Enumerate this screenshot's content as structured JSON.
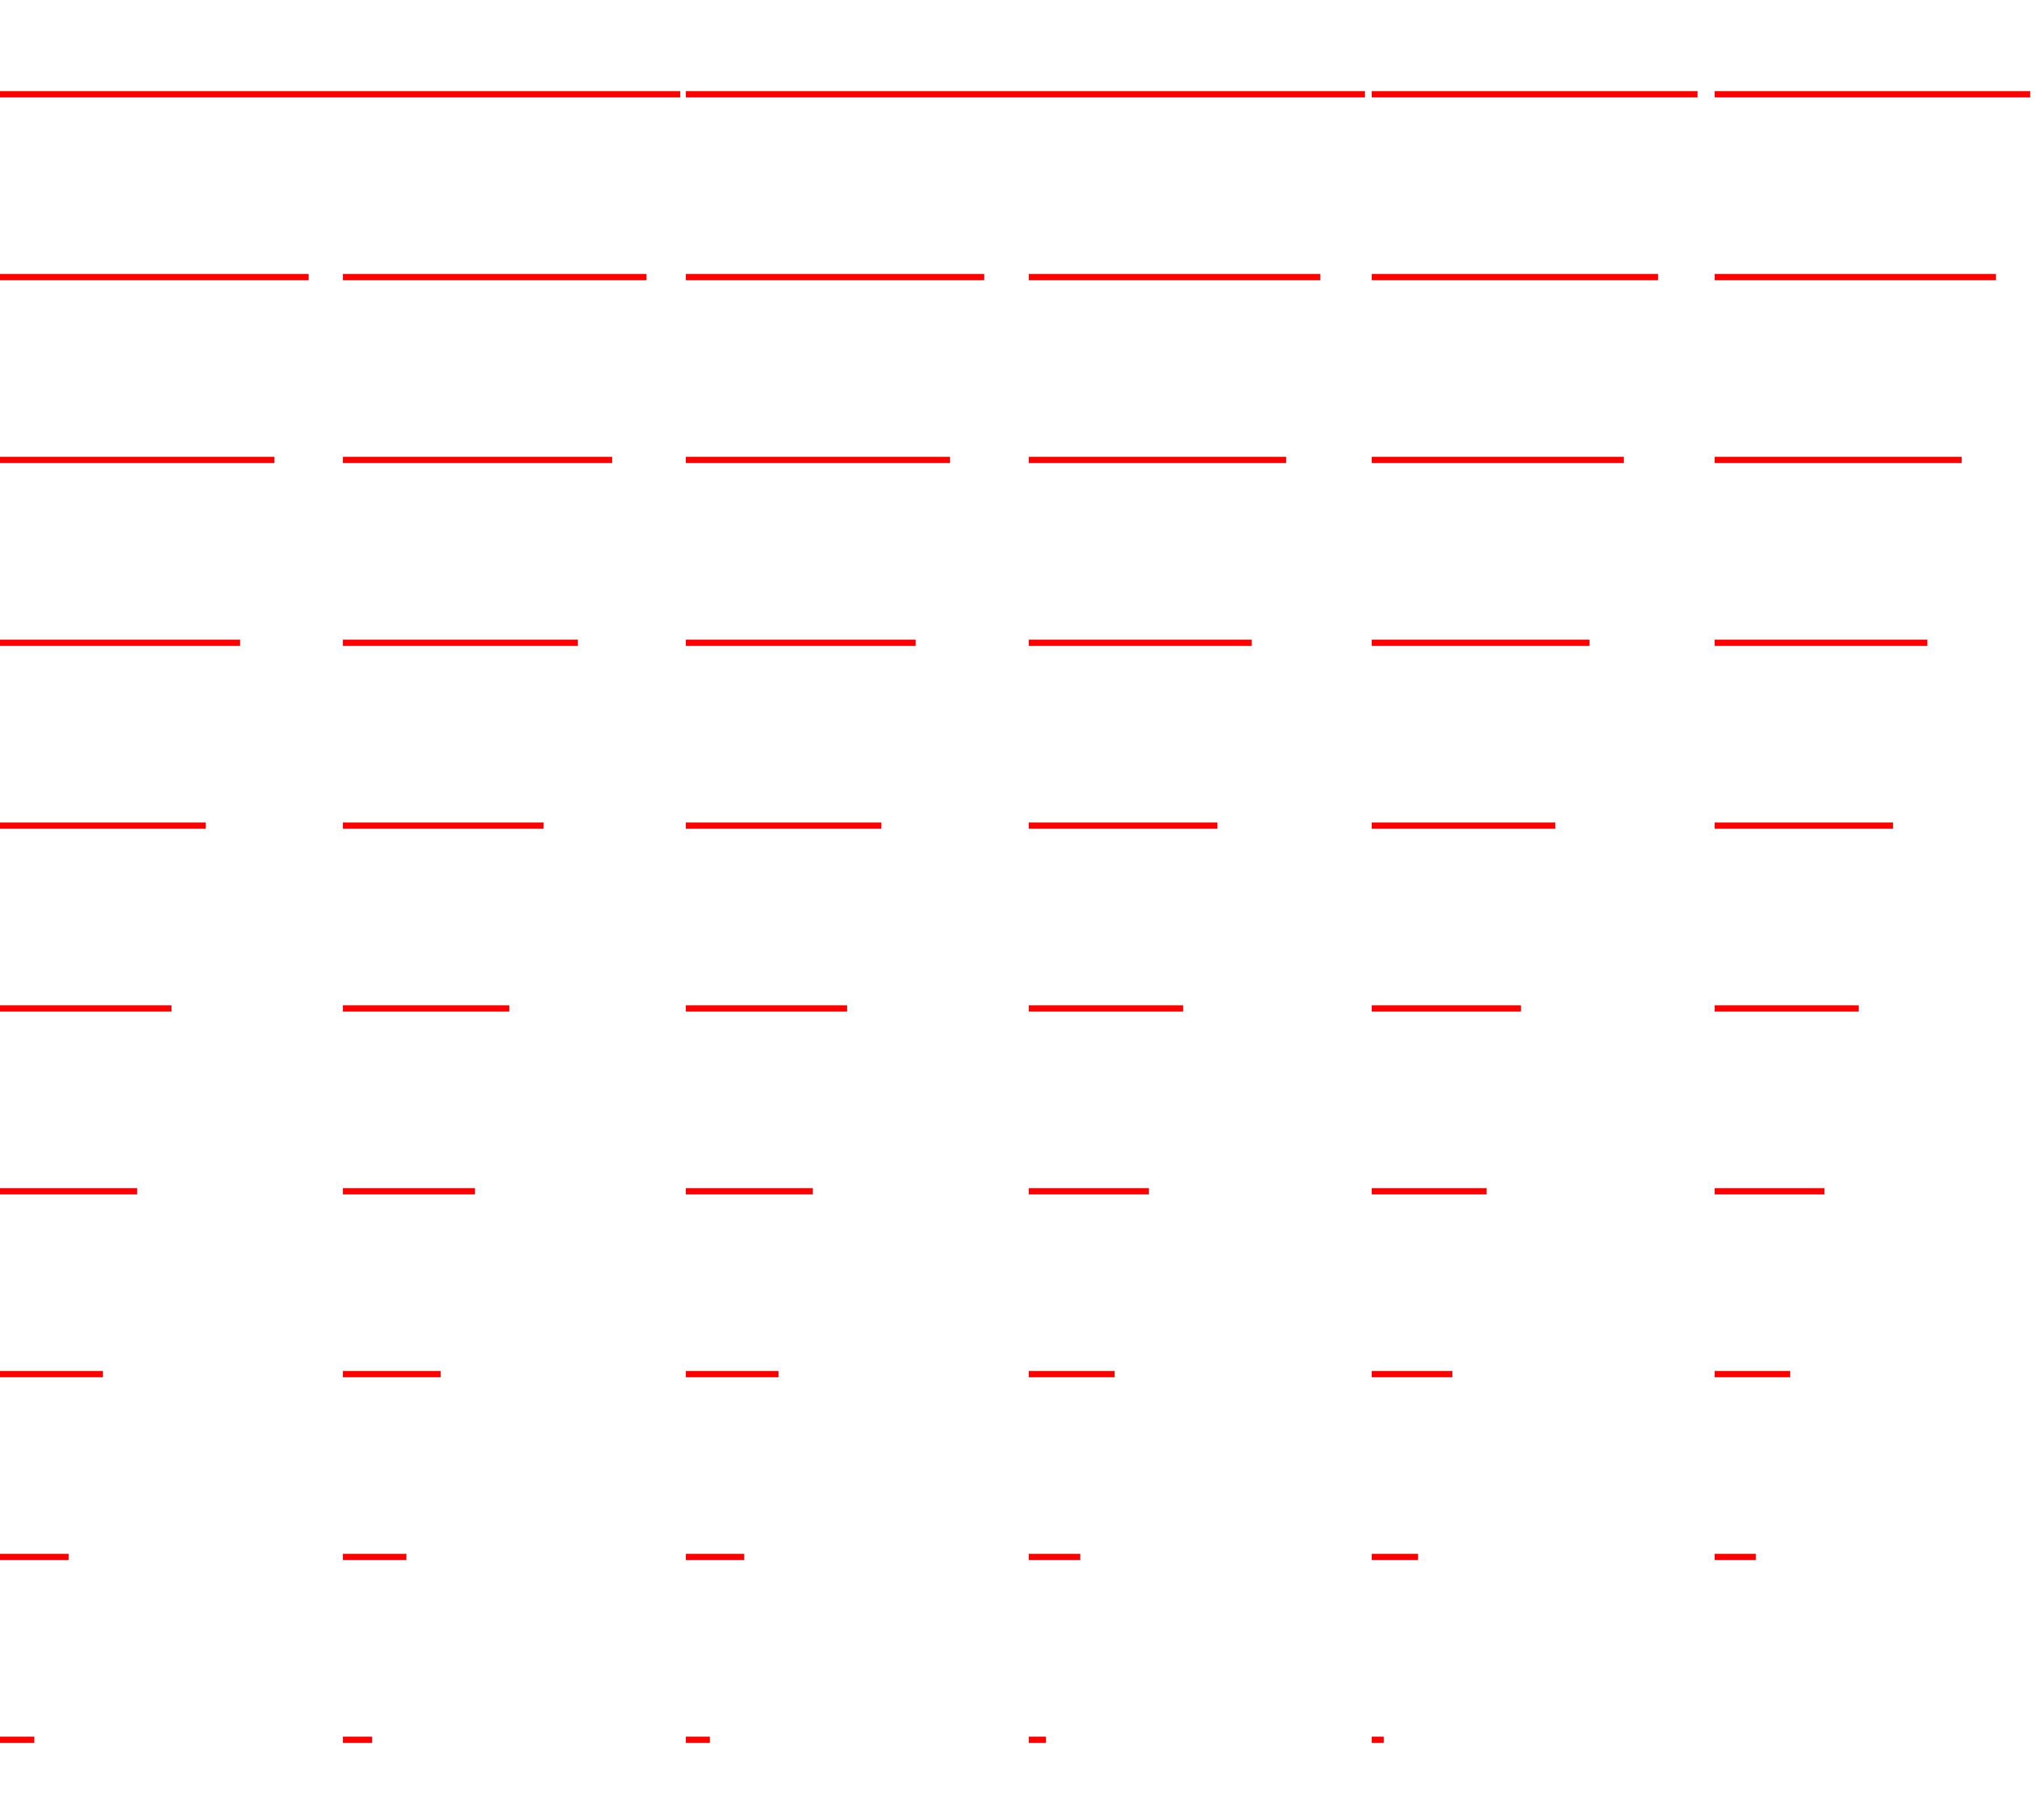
{
  "line_color": "#ff0000",
  "background_color": "#ffffff",
  "rows": [
    {
      "lengths": [
        1.0,
        1.0,
        0.98,
        0.95,
        0.92
      ]
    },
    {
      "lengths": [
        0.9,
        0.885,
        0.87,
        0.85,
        0.835,
        0.82
      ]
    },
    {
      "lengths": [
        0.8,
        0.785,
        0.77,
        0.75,
        0.735,
        0.72
      ]
    },
    {
      "lengths": [
        0.7,
        0.685,
        0.67,
        0.65,
        0.635,
        0.62
      ]
    },
    {
      "lengths": [
        0.6,
        0.585,
        0.57,
        0.55,
        0.535,
        0.52
      ]
    },
    {
      "lengths": [
        0.5,
        0.485,
        0.47,
        0.45,
        0.435,
        0.42
      ]
    },
    {
      "lengths": [
        0.4,
        0.385,
        0.37,
        0.35,
        0.335,
        0.32
      ]
    },
    {
      "lengths": [
        0.3,
        0.285,
        0.27,
        0.25,
        0.235,
        0.22
      ]
    },
    {
      "lengths": [
        0.2,
        0.185,
        0.17,
        0.15,
        0.135,
        0.12
      ]
    },
    {
      "lengths": [
        0.1,
        0.085,
        0.07,
        0.05,
        0.035
      ]
    }
  ]
}
